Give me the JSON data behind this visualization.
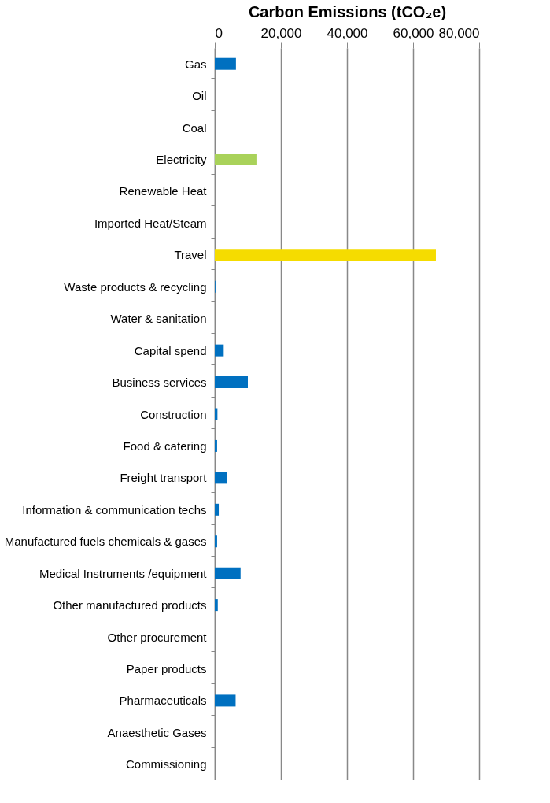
{
  "chart_data": {
    "type": "bar",
    "orientation": "horizontal",
    "xlabel": "Carbon Emissions (tCO₂e)",
    "categories": [
      "Gas",
      "Oil",
      "Coal",
      "Electricity",
      "Renewable Heat",
      "Imported Heat/Steam",
      "Travel",
      "Waste products & recycling",
      "Water & sanitation",
      "Capital spend",
      "Business services",
      "Construction",
      "Food & catering",
      "Freight transport",
      "Information & communication techs",
      "Manufactured fuels chemicals & gases",
      "Medical Instruments /equipment ",
      "Other manufactured products",
      "Other procurement",
      "Paper products",
      "Pharmaceuticals ",
      "Anaesthetic Gases",
      "Commissioning"
    ],
    "values": [
      6400,
      0,
      0,
      12600,
      0,
      0,
      66900,
      200,
      0,
      2700,
      10000,
      800,
      700,
      3600,
      1200,
      700,
      7800,
      900,
      0,
      0,
      6300,
      0,
      0
    ],
    "colors": [
      "#0070c0",
      "#0070c0",
      "#0070c0",
      "#a9d25a",
      "#0070c0",
      "#0070c0",
      "#f5dc00",
      "#0070c0",
      "#0070c0",
      "#0070c0",
      "#0070c0",
      "#0070c0",
      "#0070c0",
      "#0070c0",
      "#0070c0",
      "#0070c0",
      "#0070c0",
      "#0070c0",
      "#0070c0",
      "#0070c0",
      "#0070c0",
      "#0070c0",
      "#0070c0"
    ],
    "xlim": [
      0,
      80000
    ],
    "xticks": [
      0,
      {
        "value": 20000,
        "label": "20,000"
      },
      {
        "value": 40000,
        "label": "40,000"
      },
      {
        "value": 60000,
        "label": "60,000"
      },
      {
        "value": 80000,
        "label": "80,000"
      }
    ],
    "grid": "x"
  }
}
